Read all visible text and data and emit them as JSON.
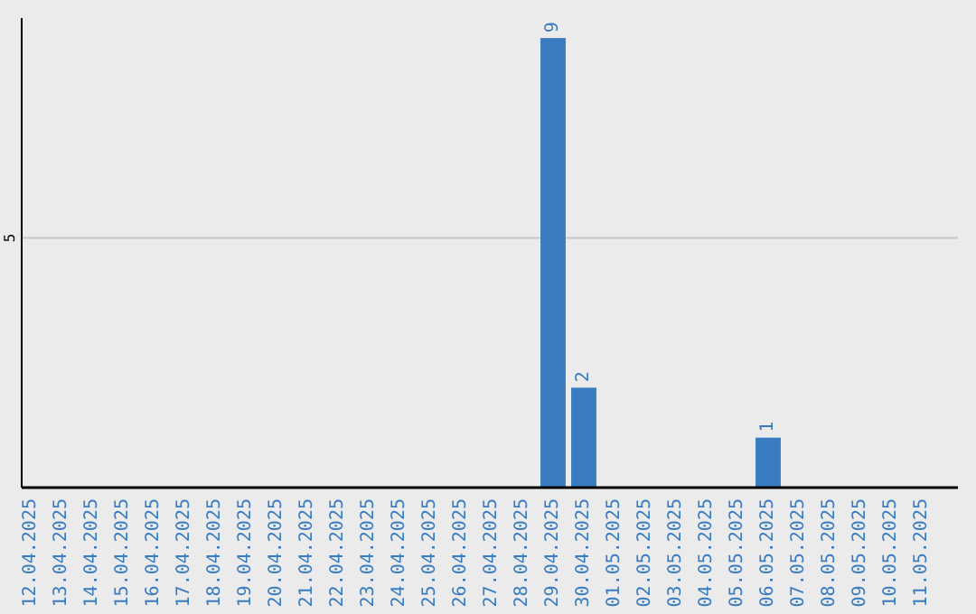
{
  "chart_data": {
    "type": "bar",
    "ylim": [
      0,
      9.4
    ],
    "categories": [
      "12.04.2025",
      "13.04.2025",
      "14.04.2025",
      "15.04.2025",
      "16.04.2025",
      "17.04.2025",
      "18.04.2025",
      "19.04.2025",
      "20.04.2025",
      "21.04.2025",
      "22.04.2025",
      "23.04.2025",
      "24.04.2025",
      "25.04.2025",
      "26.04.2025",
      "27.04.2025",
      "28.04.2025",
      "29.04.2025",
      "30.04.2025",
      "01.05.2025",
      "02.05.2025",
      "03.05.2025",
      "04.05.2025",
      "05.05.2025",
      "06.05.2025",
      "07.05.2025",
      "08.05.2025",
      "09.05.2025",
      "10.05.2025",
      "11.05.2025"
    ],
    "values": [
      null,
      null,
      null,
      null,
      null,
      null,
      null,
      null,
      null,
      null,
      null,
      null,
      null,
      null,
      null,
      null,
      null,
      9,
      2,
      null,
      null,
      null,
      null,
      null,
      1,
      null,
      null,
      null,
      null,
      null
    ],
    "value_labels": [
      null,
      null,
      null,
      null,
      null,
      null,
      null,
      null,
      null,
      null,
      null,
      null,
      null,
      null,
      null,
      null,
      null,
      "9",
      "2",
      null,
      null,
      null,
      null,
      null,
      "1",
      null,
      null,
      null,
      null,
      null
    ],
    "color": "#3a7cc0",
    "ref_lines": [
      {
        "axis": "y",
        "value": 5,
        "label": "5",
        "color": "#c8c8c8"
      }
    ]
  }
}
